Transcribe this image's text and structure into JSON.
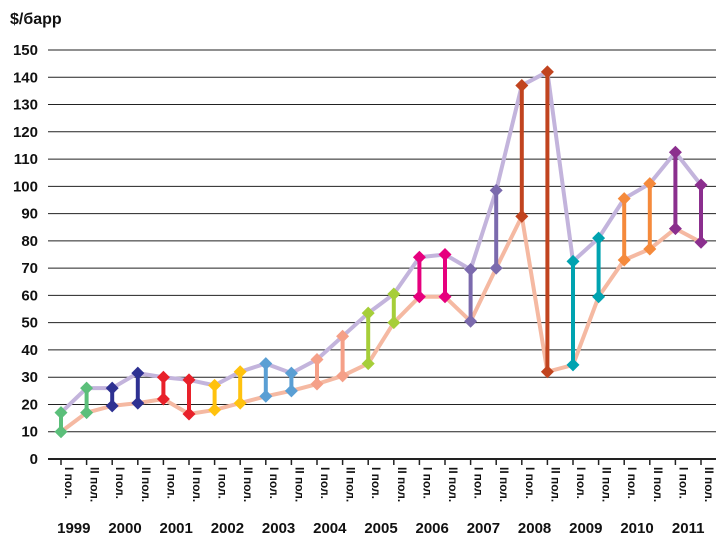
{
  "chart_data": {
    "type": "line",
    "ylabel": "$/барр",
    "ylim": [
      0,
      150
    ],
    "yticks": [
      0,
      10,
      20,
      30,
      40,
      50,
      60,
      70,
      80,
      90,
      100,
      110,
      120,
      130,
      140,
      150
    ],
    "grid": true,
    "half_labels": [
      "I пол.",
      "II пол."
    ],
    "years": [
      "1999",
      "2000",
      "2001",
      "2002",
      "2003",
      "2004",
      "2005",
      "2006",
      "2007",
      "2008",
      "2009",
      "2010",
      "2011"
    ],
    "series": [
      {
        "role": "high",
        "color": "#c3b4dc",
        "values": [
          17,
          26,
          26,
          31.5,
          30,
          29,
          27,
          32,
          35,
          31.5,
          36.5,
          45,
          53.5,
          60.5,
          74,
          75,
          69.5,
          98.5,
          137,
          142,
          72.5,
          81,
          95.5,
          101,
          112.5,
          100.5
        ]
      },
      {
        "role": "low",
        "color": "#f5b9a2",
        "values": [
          10,
          17,
          19.5,
          20.5,
          22,
          16.5,
          18,
          20.5,
          23,
          25,
          27.5,
          30.5,
          35,
          50,
          59.5,
          59.5,
          50.5,
          70,
          89,
          32,
          34.5,
          59.5,
          73,
          77,
          84.5,
          79.5
        ]
      }
    ],
    "range_colors": [
      "#5bbf7a",
      "#5bbf7a",
      "#2e3192",
      "#2e3192",
      "#e8212a",
      "#e8212a",
      "#ffc20e",
      "#ffc20e",
      "#5a9fd4",
      "#5a9fd4",
      "#f5a088",
      "#f5a088",
      "#a6ce39",
      "#a6ce39",
      "#e6007e",
      "#e6007e",
      "#7b6aad",
      "#7b6aad",
      "#c1441f",
      "#c1441f",
      "#00a3b0",
      "#00a3b0",
      "#f58a3c",
      "#f58a3c",
      "#8b2f8e",
      "#8b2f8e"
    ]
  }
}
